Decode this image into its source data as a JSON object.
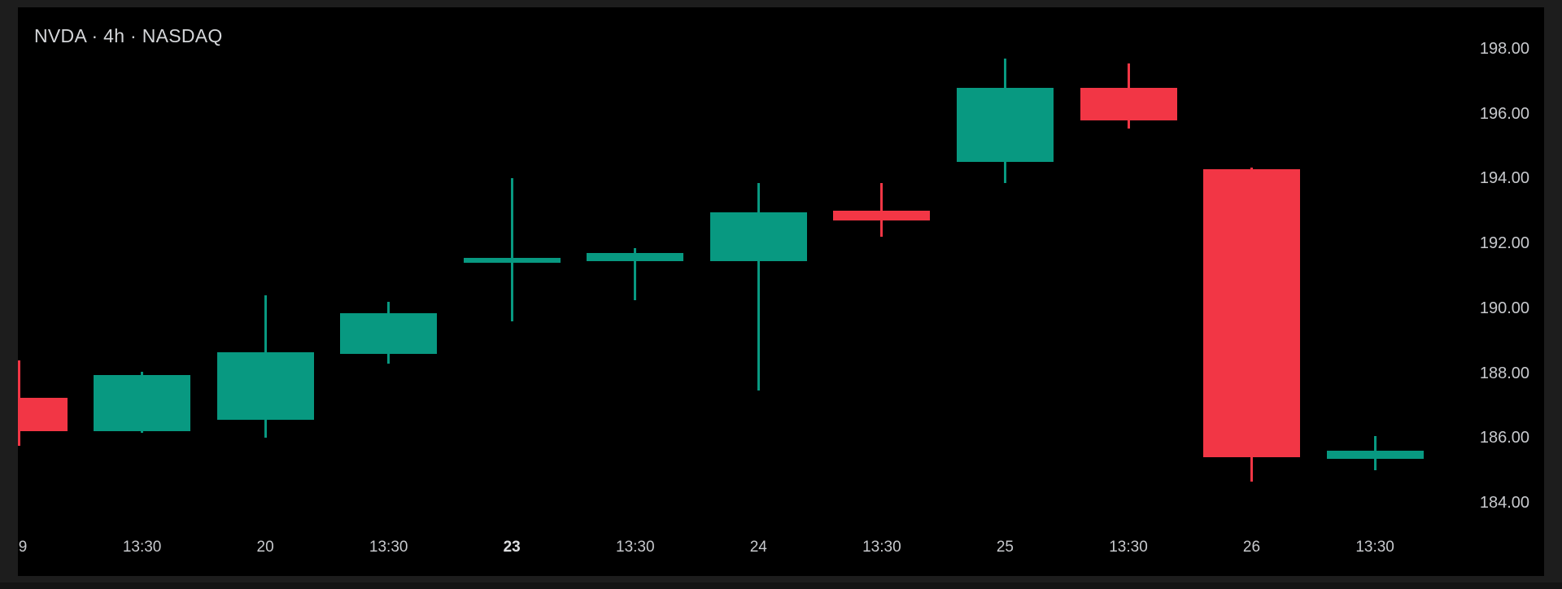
{
  "title": "NVDA · 4h · NASDAQ",
  "chart_data": {
    "type": "candlestick",
    "symbol": "NVDA",
    "interval": "4h",
    "exchange": "NASDAQ",
    "colors": {
      "up": "#089981",
      "down": "#f23645",
      "background": "#000000",
      "frame": "#1d1d1d",
      "axis_text": "#c7c9cd"
    },
    "y_axis": {
      "side": "right",
      "tick_labels": [
        "198.00",
        "196.00",
        "194.00",
        "192.00",
        "190.00",
        "188.00",
        "186.00",
        "184.00"
      ],
      "tick_values": [
        198,
        196,
        194,
        192,
        190,
        188,
        186,
        184
      ],
      "range": [
        183.5,
        198.6
      ]
    },
    "x_axis": {
      "tick_labels": [
        "9",
        "13:30",
        "20",
        "13:30",
        "23",
        "13:30",
        "24",
        "13:30",
        "25",
        "13:30",
        "26",
        "13:30"
      ],
      "bold_ticks": [
        "23"
      ]
    },
    "candles": [
      {
        "time_label": "9",
        "bold": false,
        "open": 187.25,
        "high": 188.4,
        "low": 185.75,
        "close": 186.2,
        "direction": "down",
        "note": "partially clipped at left edge"
      },
      {
        "time_label": "13:30",
        "bold": false,
        "open": 186.2,
        "high": 188.05,
        "low": 186.15,
        "close": 187.95,
        "direction": "up"
      },
      {
        "time_label": "20",
        "bold": false,
        "open": 186.55,
        "high": 190.4,
        "low": 186.0,
        "close": 188.65,
        "direction": "up"
      },
      {
        "time_label": "13:30",
        "bold": false,
        "open": 188.6,
        "high": 190.2,
        "low": 188.3,
        "close": 189.85,
        "direction": "up"
      },
      {
        "time_label": "23",
        "bold": true,
        "open": 191.4,
        "high": 194.0,
        "low": 189.6,
        "close": 191.55,
        "direction": "up"
      },
      {
        "time_label": "13:30",
        "bold": false,
        "open": 191.45,
        "high": 191.85,
        "low": 190.25,
        "close": 191.7,
        "direction": "up"
      },
      {
        "time_label": "24",
        "bold": false,
        "open": 191.45,
        "high": 193.85,
        "low": 187.45,
        "close": 192.95,
        "direction": "up"
      },
      {
        "time_label": "13:30",
        "bold": false,
        "open": 193.0,
        "high": 193.85,
        "low": 192.2,
        "close": 192.7,
        "direction": "down"
      },
      {
        "time_label": "25",
        "bold": false,
        "open": 194.5,
        "high": 197.7,
        "low": 193.85,
        "close": 196.8,
        "direction": "up"
      },
      {
        "time_label": "13:30",
        "bold": false,
        "open": 196.8,
        "high": 197.55,
        "low": 195.55,
        "close": 195.8,
        "direction": "down"
      },
      {
        "time_label": "26",
        "bold": false,
        "open": 194.3,
        "high": 194.35,
        "low": 184.65,
        "close": 185.4,
        "direction": "down"
      },
      {
        "time_label": "13:30",
        "bold": false,
        "open": 185.35,
        "high": 186.05,
        "low": 185.0,
        "close": 185.6,
        "direction": "up"
      }
    ]
  }
}
